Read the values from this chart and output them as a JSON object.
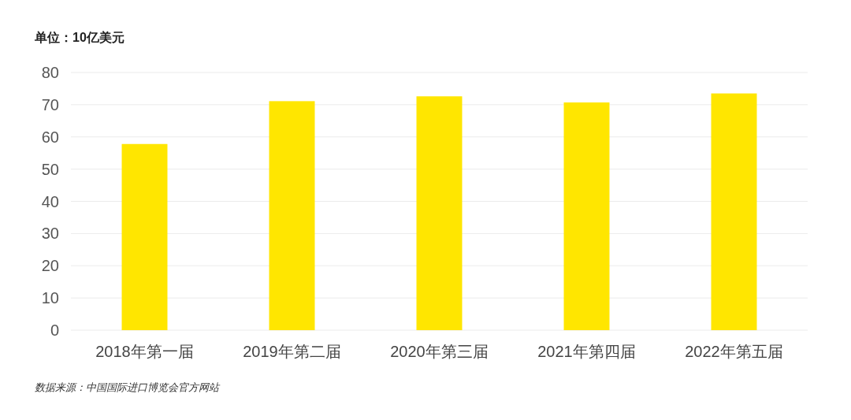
{
  "chart_data": {
    "type": "bar",
    "title": "单位：10亿美元",
    "categories": [
      "2018年第一届",
      "2019年第二届",
      "2020年第三届",
      "2021年第四届",
      "2022年第五届"
    ],
    "values": [
      57.8,
      71.1,
      72.6,
      70.7,
      73.5
    ],
    "color": "#ffe600",
    "ylim": [
      0,
      80
    ],
    "yticks": [
      0,
      10,
      20,
      30,
      40,
      50,
      60,
      70,
      80
    ],
    "grid": "y",
    "annotations": [
      "数据来源：中国国际进口博览会官方网站"
    ]
  }
}
